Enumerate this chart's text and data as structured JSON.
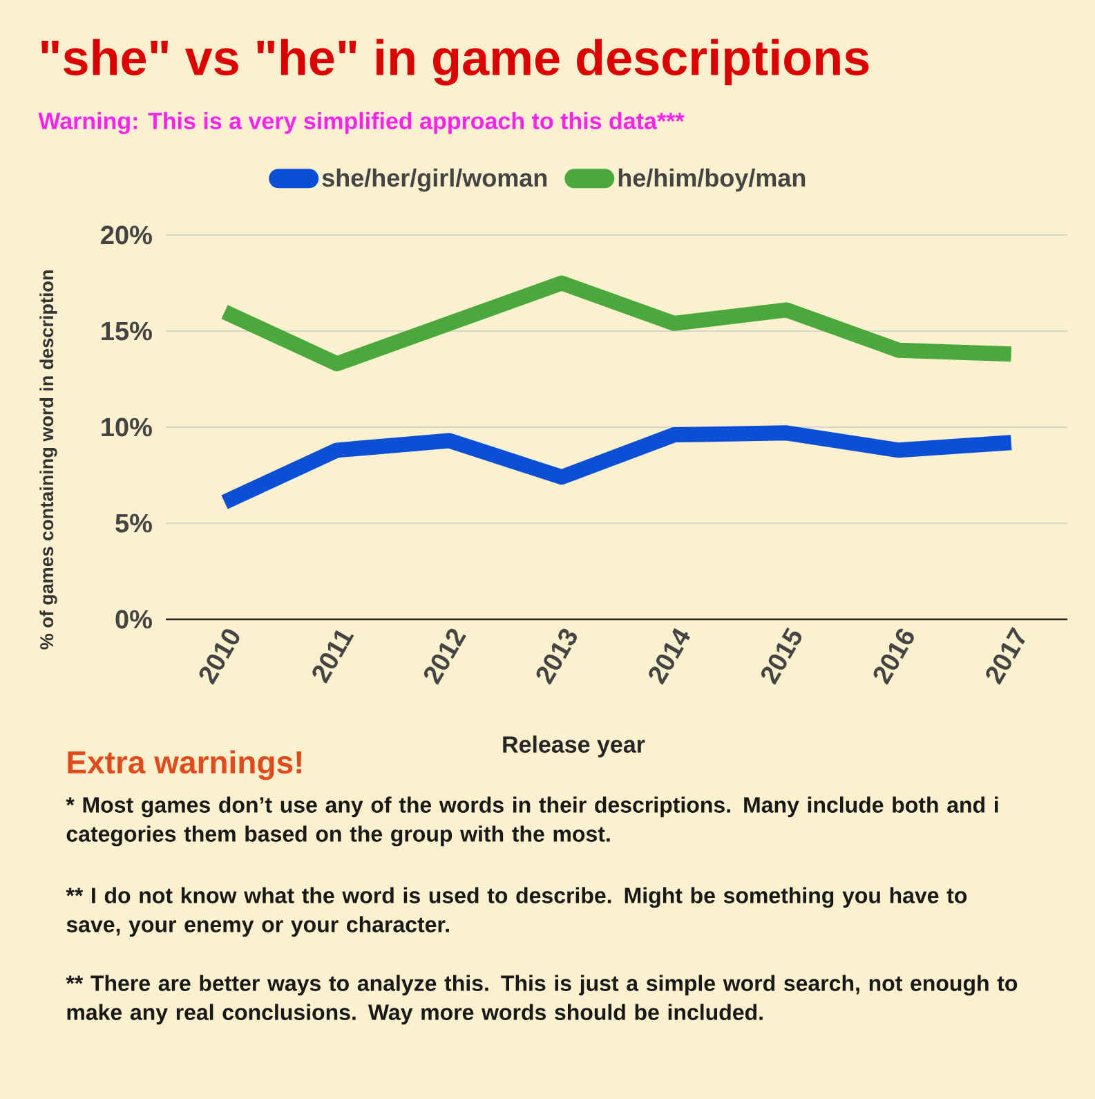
{
  "chart_data": {
    "type": "line",
    "title": "\"she\" vs \"he\" in game descriptions",
    "subtitle": "Warning: This is a very simplified approach to this data***",
    "xlabel": "Release year",
    "ylabel": "% of games containing word in description",
    "categories": [
      "2010",
      "2011",
      "2012",
      "2013",
      "2014",
      "2015",
      "2016",
      "2017"
    ],
    "series": [
      {
        "name": "she/her/girl/woman",
        "color": "#0a4fd6",
        "values": [
          6.1,
          8.8,
          9.3,
          7.4,
          9.6,
          9.7,
          8.8,
          9.2
        ]
      },
      {
        "name": "he/him/boy/man",
        "color": "#4aa83c",
        "values": [
          16.0,
          13.3,
          15.4,
          17.5,
          15.4,
          16.1,
          14.0,
          13.8
        ]
      }
    ],
    "ylim": [
      0,
      20
    ],
    "yticks": [
      {
        "value": 0,
        "label": "0%"
      },
      {
        "value": 5,
        "label": "5%"
      },
      {
        "value": 10,
        "label": "10%"
      },
      {
        "value": 15,
        "label": "15%"
      },
      {
        "value": 20,
        "label": "20%"
      }
    ],
    "grid": "y",
    "legend": "top",
    "marker": "none",
    "line_style": "solid",
    "annotations": [
      "Extra warnings!",
      "* Most games don’t use any of the words in their descriptions. Many include both and i categories them based on the group with the most.",
      "** I do not know what the word is used to describe. Might be something you have to save, your enemy or your character.",
      "** There are better ways to analyze this. This is just a simple word search, not enough to make any real conclusions. Way more words should be included."
    ]
  }
}
